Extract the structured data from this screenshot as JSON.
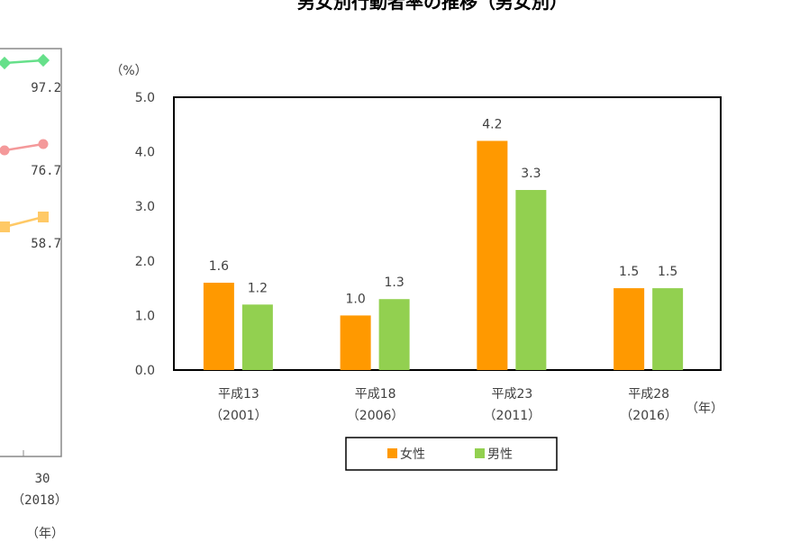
{
  "title": "男女別行動者率の推移（男女別）",
  "left_chart": {
    "end_values": [
      "97.2",
      "76.7",
      "58.7"
    ],
    "series_colors": [
      "#66e08a",
      "#f4999a",
      "#ffc966"
    ],
    "x_tick": "30",
    "x_tick_year": "（2018）",
    "x_unit": "（年）"
  },
  "chart_data": {
    "type": "bar",
    "title": "男女別行動者率の推移（男女別）",
    "ylabel": "（%）",
    "xlabel": "（年）",
    "ylim": [
      0,
      5
    ],
    "yticks": [
      "0.0",
      "1.0",
      "2.0",
      "3.0",
      "4.0",
      "5.0"
    ],
    "categories": [
      "平成13",
      "平成18",
      "平成23",
      "平成28"
    ],
    "category_years": [
      "（2001）",
      "（2006）",
      "（2011）",
      "（2016）"
    ],
    "series": [
      {
        "name": "女性",
        "color": "#ff9900",
        "values": [
          1.6,
          1.0,
          4.2,
          1.5
        ]
      },
      {
        "name": "男性",
        "color": "#92d050",
        "values": [
          1.2,
          1.3,
          3.3,
          1.5
        ]
      }
    ],
    "grid": false,
    "legend": "bottom"
  }
}
